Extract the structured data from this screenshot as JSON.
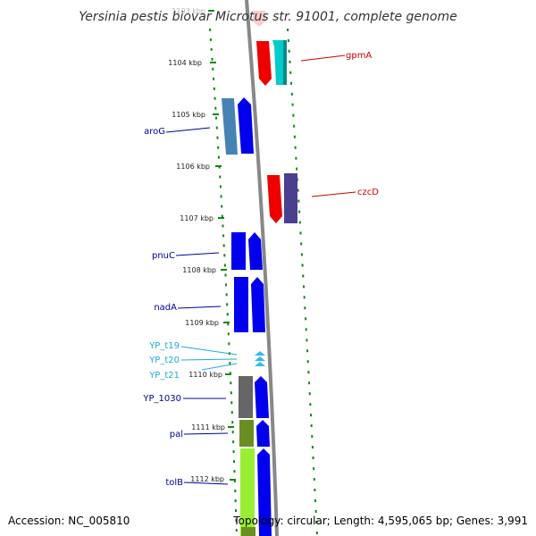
{
  "title": "Yersinia pestis biovar Microtus str. 91001, complete genome",
  "footer": {
    "accession": "Accession: NC_005810",
    "topology": "Topology: circular; Length: 4,595,065 bp; Genes: 3,991"
  },
  "colors": {
    "backbone": "#888888",
    "tick_green": "#118811",
    "forward_blue": "#0000ee",
    "red": "#ee0000",
    "cyan": "#00cccc",
    "steel_blue": "#4682b4",
    "slate": "#4b3f8f",
    "trna_cyan": "#33bbee",
    "gray": "#666666",
    "olive": "#6b8e23",
    "lime": "#99ee33"
  },
  "ticks": [
    {
      "label": "1103 kbp"
    },
    {
      "label": "1104 kbp"
    },
    {
      "label": "1105 kbp"
    },
    {
      "label": "1106 kbp"
    },
    {
      "label": "1107 kbp"
    },
    {
      "label": "1108 kbp"
    },
    {
      "label": "1109 kbp"
    },
    {
      "label": "1110 kbp"
    },
    {
      "label": "1111 kbp"
    },
    {
      "label": "1112 kbp"
    }
  ],
  "gene_labels": [
    {
      "name": "gpmA",
      "color": "#cc0000"
    },
    {
      "name": "aroG",
      "color": "#000099"
    },
    {
      "name": "czcD",
      "color": "#cc0000"
    },
    {
      "name": "pnuC",
      "color": "#000099"
    },
    {
      "name": "nadA",
      "color": "#000099"
    },
    {
      "name": "YP_t19",
      "color": "#22aadd"
    },
    {
      "name": "YP_t20",
      "color": "#22aadd"
    },
    {
      "name": "YP_t21",
      "color": "#22aadd"
    },
    {
      "name": "YP_1030",
      "color": "#000099"
    },
    {
      "name": "pal",
      "color": "#000099"
    },
    {
      "name": "tolB",
      "color": "#000099"
    }
  ]
}
